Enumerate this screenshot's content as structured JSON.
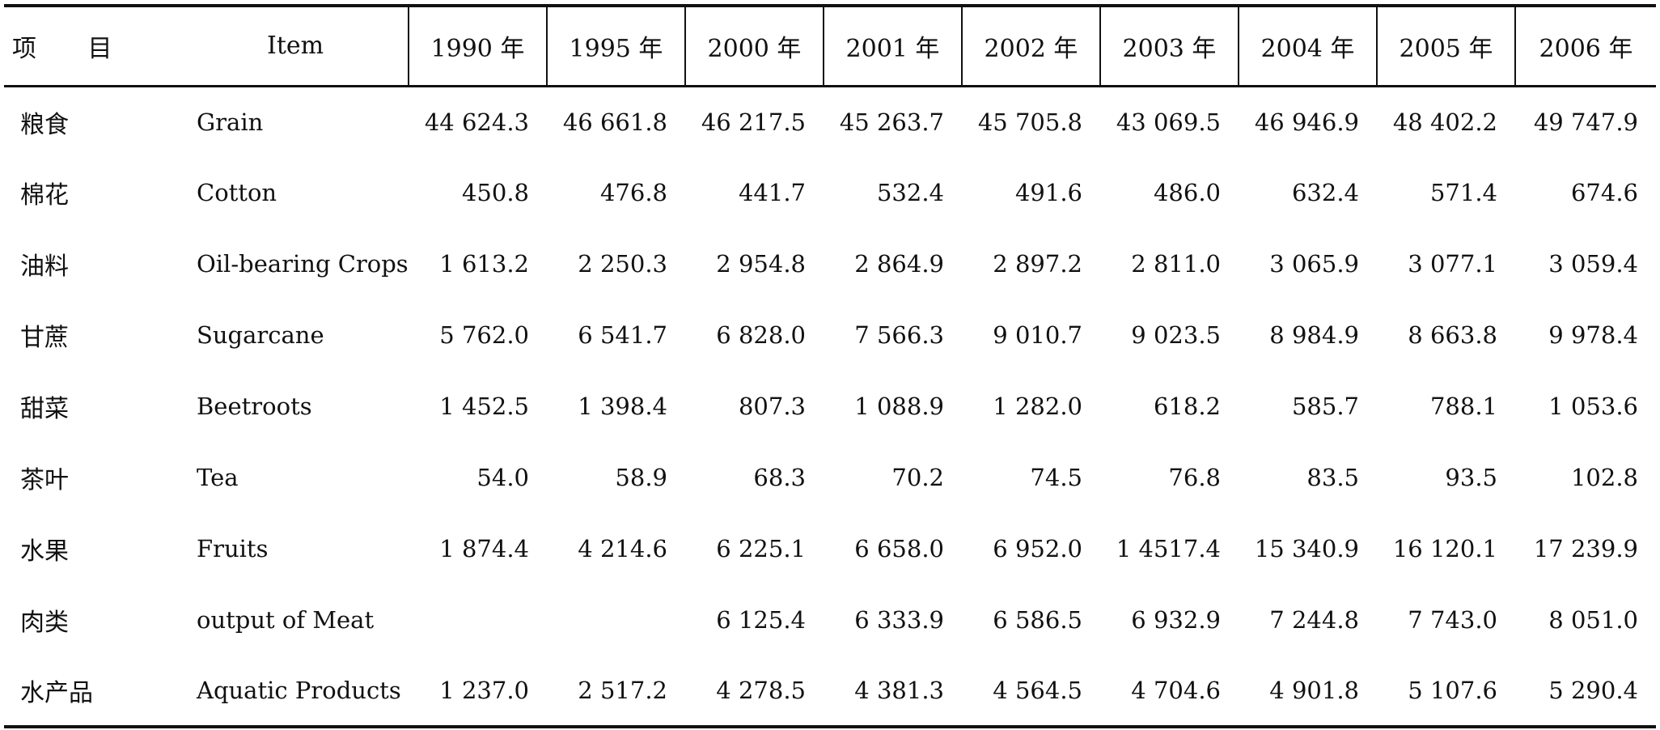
{
  "header": {
    "item_cn": "项 目",
    "item_en": "Item",
    "years": [
      "1990 年",
      "1995 年",
      "2000 年",
      "2001 年",
      "2002 年",
      "2003 年",
      "2004 年",
      "2005 年",
      "2006 年"
    ]
  },
  "rows": [
    {
      "cn": "粮食",
      "en": "Grain",
      "values": [
        "44 624.3",
        "46 661.8",
        "46 217.5",
        "45 263.7",
        "45 705.8",
        "43 069.5",
        "46 946.9",
        "48 402.2",
        "49 747.9"
      ]
    },
    {
      "cn": "棉花",
      "en": "Cotton",
      "values": [
        "450.8",
        "476.8",
        "441.7",
        "532.4",
        "491.6",
        "486.0",
        "632.4",
        "571.4",
        "674.6"
      ]
    },
    {
      "cn": "油料",
      "en": "Oil-bearing Crops",
      "values": [
        "1 613.2",
        "2 250.3",
        "2 954.8",
        "2 864.9",
        "2 897.2",
        "2 811.0",
        "3 065.9",
        "3 077.1",
        "3 059.4"
      ]
    },
    {
      "cn": "甘蔗",
      "en": "Sugarcane",
      "values": [
        "5 762.0",
        "6 541.7",
        "6 828.0",
        "7 566.3",
        "9 010.7",
        "9 023.5",
        "8 984.9",
        "8 663.8",
        "9 978.4"
      ]
    },
    {
      "cn": "甜菜",
      "en": "Beetroots",
      "values": [
        "1 452.5",
        "1 398.4",
        "807.3",
        "1 088.9",
        "1 282.0",
        "618.2",
        "585.7",
        "788.1",
        "1 053.6"
      ]
    },
    {
      "cn": "茶叶",
      "en": "Tea",
      "values": [
        "54.0",
        "58.9",
        "68.3",
        "70.2",
        "74.5",
        "76.8",
        "83.5",
        "93.5",
        "102.8"
      ]
    },
    {
      "cn": "水果",
      "en": "Fruits",
      "values": [
        "1 874.4",
        "4 214.6",
        "6 225.1",
        "6 658.0",
        "6 952.0",
        "1 4517.4",
        "15 340.9",
        "16 120.1",
        "17 239.9"
      ]
    },
    {
      "cn": "肉类",
      "en": "output of Meat",
      "values": [
        "",
        "",
        "6 125.4",
        "6 333.9",
        "6 586.5",
        "6 932.9",
        "7 244.8",
        "7 743.0",
        "8 051.0"
      ]
    },
    {
      "cn": "水产品",
      "en": "Aquatic Products",
      "values": [
        "1 237.0",
        "2 517.2",
        "4 278.5",
        "4 381.3",
        "4 564.5",
        "4 704.6",
        "4 901.8",
        "5 107.6",
        "5 290.4"
      ]
    }
  ]
}
